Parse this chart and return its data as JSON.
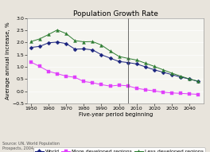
{
  "title": "Population Growth Rate",
  "xlabel": "Five-year period beginning",
  "ylabel": "Average annual increase, %",
  "xlim": [
    1948,
    2048
  ],
  "ylim": [
    -0.5,
    3.0
  ],
  "yticks": [
    -0.5,
    0.0,
    0.5,
    1.0,
    1.5,
    2.0,
    2.5,
    3.0
  ],
  "xticks": [
    1950,
    1960,
    1970,
    1980,
    1990,
    2000,
    2010,
    2020,
    2030,
    2040
  ],
  "vline_x": 2005,
  "series": [
    {
      "label": "World",
      "color": "#1a237e",
      "marker": "D",
      "markersize": 2.5,
      "x": [
        1950,
        1955,
        1960,
        1965,
        1970,
        1975,
        1980,
        1985,
        1990,
        1995,
        2000,
        2005,
        2010,
        2015,
        2020,
        2025,
        2030,
        2035,
        2040,
        2045
      ],
      "y": [
        1.8,
        1.84,
        1.99,
        2.02,
        1.96,
        1.73,
        1.74,
        1.7,
        1.5,
        1.36,
        1.22,
        1.18,
        1.12,
        1.0,
        0.88,
        0.78,
        0.68,
        0.58,
        0.5,
        0.4
      ]
    },
    {
      "label": "More developed regions",
      "color": "#e040fb",
      "marker": "s",
      "markersize": 2.5,
      "x": [
        1950,
        1955,
        1960,
        1965,
        1970,
        1975,
        1980,
        1985,
        1990,
        1995,
        2000,
        2005,
        2010,
        2015,
        2020,
        2025,
        2030,
        2035,
        2040,
        2045
      ],
      "y": [
        1.2,
        1.02,
        0.82,
        0.72,
        0.62,
        0.57,
        0.4,
        0.35,
        0.27,
        0.21,
        0.25,
        0.22,
        0.12,
        0.06,
        0.01,
        -0.04,
        -0.07,
        -0.09,
        -0.11,
        -0.13
      ]
    },
    {
      "label": "Less developed regions",
      "color": "#2e7d32",
      "marker": "^",
      "markersize": 2.8,
      "x": [
        1950,
        1955,
        1960,
        1965,
        1970,
        1975,
        1980,
        1985,
        1990,
        1995,
        2000,
        2005,
        2010,
        2015,
        2020,
        2025,
        2030,
        2035,
        2040,
        2045
      ],
      "y": [
        2.04,
        2.15,
        2.33,
        2.52,
        2.37,
        2.08,
        2.03,
        2.04,
        1.9,
        1.65,
        1.43,
        1.35,
        1.28,
        1.15,
        1.02,
        0.88,
        0.74,
        0.62,
        0.5,
        0.41
      ]
    }
  ],
  "source_text": "Source: UN, World Population\nProspects, 2004.",
  "plot_bg_color": "#f5f5f0",
  "fig_bg_color": "#e8e4dc",
  "title_fontsize": 6.5,
  "axis_label_fontsize": 5,
  "tick_fontsize": 4.5,
  "legend_fontsize": 4.5,
  "source_fontsize": 3.5
}
